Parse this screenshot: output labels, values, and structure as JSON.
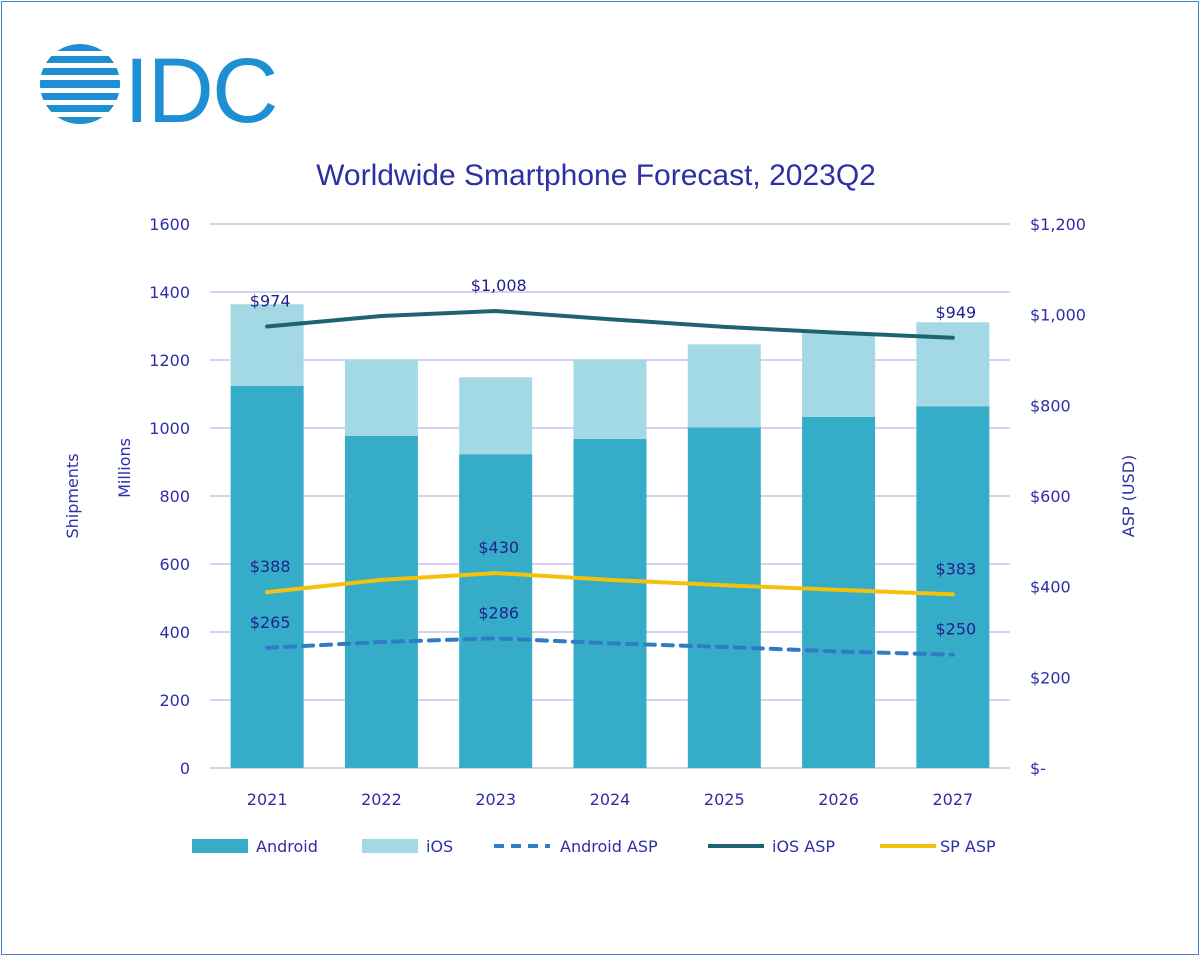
{
  "logo": {
    "text": "IDC"
  },
  "colors": {
    "android": "#36adc8",
    "ios": "#a2d9e4",
    "android_asp": "#2f7cc4",
    "ios_asp": "#1e6470",
    "sp_asp": "#f4c20d",
    "grid": "#c8c0ee",
    "text": "#2e2ea6"
  },
  "chart_data": {
    "type": "bar",
    "title": "Worldwide Smartphone Forecast, 2023Q2",
    "categories": [
      "2021",
      "2022",
      "2023",
      "2024",
      "2025",
      "2026",
      "2027"
    ],
    "y_left": {
      "label": "Shipments",
      "sublabel": "Millions",
      "ylim": [
        0,
        1600
      ],
      "ticks": [
        0,
        200,
        400,
        600,
        800,
        1000,
        1200,
        1400,
        1600
      ],
      "tick_labels": [
        "0",
        "200",
        "400",
        "600",
        "800",
        "1000",
        "1200",
        "1400",
        "1600"
      ]
    },
    "y_right": {
      "label": "ASP (USD)",
      "ylim": [
        0,
        1200
      ],
      "ticks": [
        0,
        200,
        400,
        600,
        800,
        1000,
        1200
      ],
      "tick_labels": [
        "$-",
        "$200",
        "$400",
        "$600",
        "$800",
        "$1,000",
        "$1,200"
      ]
    },
    "grid": true,
    "legend_position": "bottom",
    "series": [
      {
        "name": "Android",
        "type": "stacked-bar",
        "axis": "left",
        "values": [
          1124,
          977,
          923,
          968,
          1002,
          1033,
          1064
        ]
      },
      {
        "name": "iOS",
        "type": "stacked-bar",
        "axis": "left",
        "values": [
          240,
          225,
          226,
          234,
          244,
          246,
          247
        ]
      },
      {
        "name": "Android ASP",
        "type": "line-dashed",
        "axis": "right",
        "values": [
          265,
          278,
          286,
          275,
          267,
          257,
          250
        ],
        "data_labels": {
          "0": "$265",
          "2": "$286",
          "6": "$250"
        }
      },
      {
        "name": "iOS ASP",
        "type": "line",
        "axis": "right",
        "values": [
          974,
          997,
          1008,
          990,
          973,
          960,
          949
        ],
        "data_labels": {
          "0": "$974",
          "2": "$1,008",
          "6": "$949"
        }
      },
      {
        "name": "SP ASP",
        "type": "line",
        "axis": "right",
        "values": [
          388,
          415,
          430,
          415,
          403,
          393,
          383
        ],
        "data_labels": {
          "0": "$388",
          "2": "$430",
          "6": "$383"
        }
      }
    ]
  }
}
